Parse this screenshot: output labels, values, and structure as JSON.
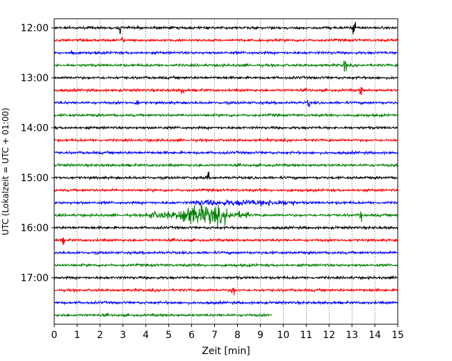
{
  "chart_data": {
    "type": "line",
    "xlabel": "Zeit  [min]",
    "ylabel": "UTC (Lokalzeit = UTC + 01:00)",
    "xlim": [
      0,
      15
    ],
    "x_ticks": [
      "0",
      "1",
      "2",
      "3",
      "4",
      "5",
      "6",
      "7",
      "8",
      "9",
      "10",
      "11",
      "12",
      "13",
      "14",
      "15"
    ],
    "y_tick_labels": [
      "12:00",
      "13:00",
      "14:00",
      "15:00",
      "16:00",
      "17:00"
    ],
    "grid": "vertical-dotted",
    "trace_colors": [
      "#000000",
      "#ff0000",
      "#0000ff",
      "#008000"
    ],
    "traces_per_hour": 4,
    "minutes_per_trace": 15,
    "start_time": "12:00",
    "trace_count": 24,
    "last_trace_end_min": 9.5
  }
}
